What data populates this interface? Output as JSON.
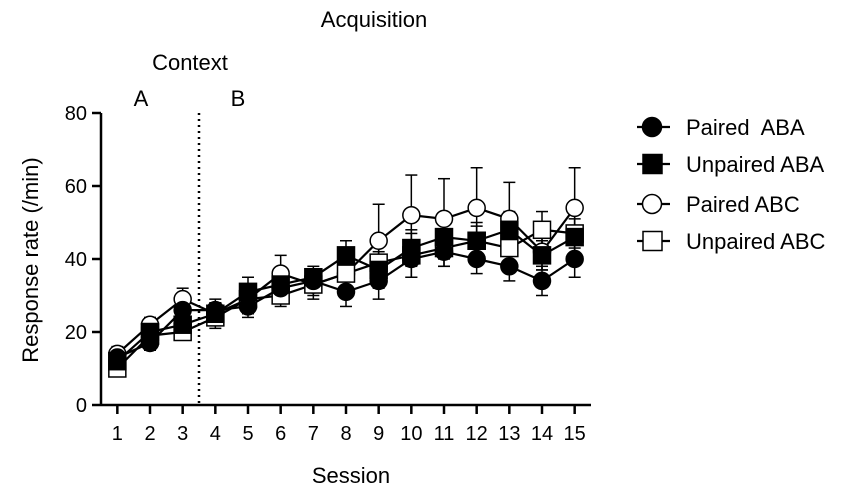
{
  "chart_data": {
    "type": "line",
    "title": "Acquisition",
    "xlabel": "Session",
    "ylabel": "Response rate (/min)",
    "x": [
      1,
      2,
      3,
      4,
      5,
      6,
      7,
      8,
      9,
      10,
      11,
      12,
      13,
      14,
      15
    ],
    "xlim": [
      0.5,
      15.5
    ],
    "ylim": [
      0,
      80
    ],
    "yticks": [
      0,
      20,
      40,
      60,
      80
    ],
    "grid": false,
    "legend_position": "right",
    "context_annotation": {
      "label": "Context",
      "divider_x": 3.5,
      "left_label": "A",
      "right_label": "B"
    },
    "series": [
      {
        "name": "Paired  ABA",
        "marker": "circle",
        "fill": "#000000",
        "values": [
          13,
          17,
          26,
          26,
          27,
          32,
          34,
          31,
          34,
          40,
          42,
          40,
          38,
          34,
          40
        ],
        "errors": [
          2,
          2,
          3,
          3,
          3,
          3,
          3,
          4,
          5,
          5,
          4,
          4,
          4,
          4,
          5
        ]
      },
      {
        "name": "Unpaired ABA",
        "marker": "square",
        "fill": "#000000",
        "values": [
          12,
          20,
          22,
          25,
          31,
          33,
          35,
          41,
          37,
          43,
          46,
          45,
          48,
          41,
          46
        ],
        "errors": [
          2,
          2,
          2,
          3,
          4,
          4,
          3,
          4,
          5,
          5,
          5,
          4,
          5,
          4,
          5
        ]
      },
      {
        "name": "Paired ABC",
        "marker": "circle",
        "fill": "#ffffff",
        "values": [
          14,
          22,
          29,
          25,
          29,
          36,
          33,
          36,
          45,
          52,
          51,
          54,
          51,
          42,
          54
        ],
        "errors": [
          2,
          2,
          3,
          3,
          4,
          5,
          4,
          5,
          10,
          11,
          11,
          11,
          10,
          5,
          11
        ]
      },
      {
        "name": "Unpaired ABC",
        "marker": "square",
        "fill": "#ffffff",
        "values": [
          10,
          19,
          20,
          24,
          29,
          30,
          33,
          36,
          39,
          41,
          43,
          45,
          43,
          48,
          47
        ],
        "errors": [
          2,
          2,
          2,
          3,
          4,
          3,
          3,
          4,
          5,
          6,
          5,
          5,
          5,
          5,
          6
        ]
      }
    ]
  }
}
